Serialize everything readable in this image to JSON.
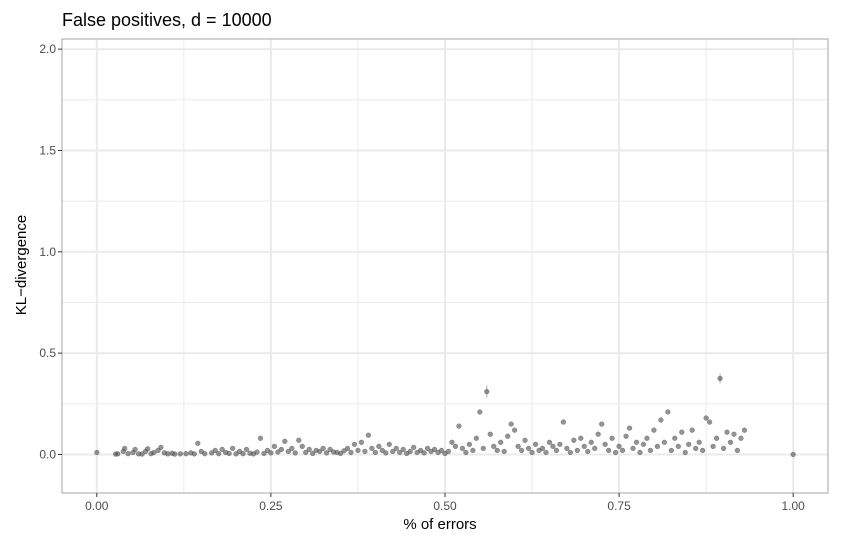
{
  "chart_data": {
    "type": "scatter",
    "title": "False positives,  d = 10000",
    "xlabel": "% of errors",
    "ylabel": "KL−divergence",
    "xlim": [
      -0.05,
      1.05
    ],
    "ylim": [
      -0.19,
      2.05
    ],
    "x_ticks": [
      0.0,
      0.25,
      0.5,
      0.75,
      1.0
    ],
    "x_tick_labels": [
      "0.00",
      "0.25",
      "0.50",
      "0.75",
      "1.00"
    ],
    "y_ticks": [
      0.0,
      0.5,
      1.0,
      1.5,
      2.0
    ],
    "y_tick_labels": [
      "0.0",
      "0.5",
      "1.0",
      "1.5",
      "2.0"
    ],
    "grid": true,
    "point_color": "#4d4d4d",
    "errorbar_color": "#bdbdbd",
    "points": [
      {
        "x": 0.0,
        "y": 0.01
      },
      {
        "x": 0.027,
        "y": 0.002
      },
      {
        "x": 0.03,
        "y": 0.003
      },
      {
        "x": 0.038,
        "y": 0.015
      },
      {
        "x": 0.04,
        "y": 0.03
      },
      {
        "x": 0.045,
        "y": 0.004
      },
      {
        "x": 0.052,
        "y": 0.01
      },
      {
        "x": 0.055,
        "y": 0.025
      },
      {
        "x": 0.06,
        "y": 0.003
      },
      {
        "x": 0.065,
        "y": 0.002
      },
      {
        "x": 0.07,
        "y": 0.015
      },
      {
        "x": 0.073,
        "y": 0.028
      },
      {
        "x": 0.078,
        "y": 0.004
      },
      {
        "x": 0.082,
        "y": 0.01
      },
      {
        "x": 0.088,
        "y": 0.02
      },
      {
        "x": 0.092,
        "y": 0.035
      },
      {
        "x": 0.097,
        "y": 0.008
      },
      {
        "x": 0.102,
        "y": 0.003
      },
      {
        "x": 0.108,
        "y": 0.006
      },
      {
        "x": 0.112,
        "y": 0.002
      },
      {
        "x": 0.12,
        "y": 0.003
      },
      {
        "x": 0.128,
        "y": 0.004
      },
      {
        "x": 0.135,
        "y": 0.008
      },
      {
        "x": 0.14,
        "y": 0.003
      },
      {
        "x": 0.145,
        "y": 0.055
      },
      {
        "x": 0.15,
        "y": 0.015
      },
      {
        "x": 0.155,
        "y": 0.004
      },
      {
        "x": 0.165,
        "y": 0.008
      },
      {
        "x": 0.17,
        "y": 0.02
      },
      {
        "x": 0.175,
        "y": 0.004
      },
      {
        "x": 0.18,
        "y": 0.025
      },
      {
        "x": 0.185,
        "y": 0.01
      },
      {
        "x": 0.19,
        "y": 0.005
      },
      {
        "x": 0.195,
        "y": 0.03
      },
      {
        "x": 0.2,
        "y": 0.003
      },
      {
        "x": 0.205,
        "y": 0.015
      },
      {
        "x": 0.21,
        "y": 0.004
      },
      {
        "x": 0.215,
        "y": 0.025
      },
      {
        "x": 0.22,
        "y": 0.006
      },
      {
        "x": 0.225,
        "y": 0.003
      },
      {
        "x": 0.23,
        "y": 0.012
      },
      {
        "x": 0.235,
        "y": 0.08
      },
      {
        "x": 0.24,
        "y": 0.005
      },
      {
        "x": 0.245,
        "y": 0.02
      },
      {
        "x": 0.25,
        "y": 0.008
      },
      {
        "x": 0.255,
        "y": 0.04
      },
      {
        "x": 0.26,
        "y": 0.012
      },
      {
        "x": 0.265,
        "y": 0.025
      },
      {
        "x": 0.27,
        "y": 0.065
      },
      {
        "x": 0.275,
        "y": 0.015
      },
      {
        "x": 0.28,
        "y": 0.03
      },
      {
        "x": 0.285,
        "y": 0.008
      },
      {
        "x": 0.29,
        "y": 0.07
      },
      {
        "x": 0.295,
        "y": 0.04
      },
      {
        "x": 0.3,
        "y": 0.01
      },
      {
        "x": 0.305,
        "y": 0.025
      },
      {
        "x": 0.31,
        "y": 0.005
      },
      {
        "x": 0.315,
        "y": 0.02
      },
      {
        "x": 0.32,
        "y": 0.015
      },
      {
        "x": 0.325,
        "y": 0.03
      },
      {
        "x": 0.33,
        "y": 0.008
      },
      {
        "x": 0.335,
        "y": 0.025
      },
      {
        "x": 0.34,
        "y": 0.012
      },
      {
        "x": 0.345,
        "y": 0.01
      },
      {
        "x": 0.35,
        "y": 0.005
      },
      {
        "x": 0.355,
        "y": 0.018
      },
      {
        "x": 0.36,
        "y": 0.03
      },
      {
        "x": 0.365,
        "y": 0.01
      },
      {
        "x": 0.37,
        "y": 0.05
      },
      {
        "x": 0.375,
        "y": 0.02
      },
      {
        "x": 0.38,
        "y": 0.06
      },
      {
        "x": 0.385,
        "y": 0.015
      },
      {
        "x": 0.39,
        "y": 0.095
      },
      {
        "x": 0.395,
        "y": 0.03
      },
      {
        "x": 0.4,
        "y": 0.01
      },
      {
        "x": 0.405,
        "y": 0.04
      },
      {
        "x": 0.41,
        "y": 0.02
      },
      {
        "x": 0.415,
        "y": 0.008
      },
      {
        "x": 0.42,
        "y": 0.05
      },
      {
        "x": 0.425,
        "y": 0.015
      },
      {
        "x": 0.43,
        "y": 0.03
      },
      {
        "x": 0.435,
        "y": 0.01
      },
      {
        "x": 0.44,
        "y": 0.025
      },
      {
        "x": 0.445,
        "y": 0.005
      },
      {
        "x": 0.45,
        "y": 0.015
      },
      {
        "x": 0.455,
        "y": 0.035
      },
      {
        "x": 0.46,
        "y": 0.01
      },
      {
        "x": 0.465,
        "y": 0.02
      },
      {
        "x": 0.47,
        "y": 0.008
      },
      {
        "x": 0.475,
        "y": 0.03
      },
      {
        "x": 0.48,
        "y": 0.015
      },
      {
        "x": 0.485,
        "y": 0.025
      },
      {
        "x": 0.49,
        "y": 0.01
      },
      {
        "x": 0.495,
        "y": 0.02
      },
      {
        "x": 0.5,
        "y": 0.005
      },
      {
        "x": 0.505,
        "y": 0.015
      },
      {
        "x": 0.51,
        "y": 0.06
      },
      {
        "x": 0.515,
        "y": 0.04
      },
      {
        "x": 0.52,
        "y": 0.14
      },
      {
        "x": 0.525,
        "y": 0.03
      },
      {
        "x": 0.53,
        "y": 0.01
      },
      {
        "x": 0.535,
        "y": 0.05
      },
      {
        "x": 0.54,
        "y": 0.02
      },
      {
        "x": 0.545,
        "y": 0.08
      },
      {
        "x": 0.55,
        "y": 0.21
      },
      {
        "x": 0.555,
        "y": 0.03
      },
      {
        "x": 0.56,
        "y": 0.31,
        "err": 0.03
      },
      {
        "x": 0.565,
        "y": 0.1
      },
      {
        "x": 0.57,
        "y": 0.04
      },
      {
        "x": 0.575,
        "y": 0.02
      },
      {
        "x": 0.58,
        "y": 0.06
      },
      {
        "x": 0.585,
        "y": 0.015
      },
      {
        "x": 0.59,
        "y": 0.09
      },
      {
        "x": 0.595,
        "y": 0.15
      },
      {
        "x": 0.6,
        "y": 0.12
      },
      {
        "x": 0.605,
        "y": 0.04
      },
      {
        "x": 0.61,
        "y": 0.02
      },
      {
        "x": 0.615,
        "y": 0.07
      },
      {
        "x": 0.62,
        "y": 0.03
      },
      {
        "x": 0.625,
        "y": 0.01
      },
      {
        "x": 0.63,
        "y": 0.05
      },
      {
        "x": 0.635,
        "y": 0.02
      },
      {
        "x": 0.64,
        "y": 0.03
      },
      {
        "x": 0.645,
        "y": 0.01
      },
      {
        "x": 0.65,
        "y": 0.06
      },
      {
        "x": 0.655,
        "y": 0.04
      },
      {
        "x": 0.66,
        "y": 0.02
      },
      {
        "x": 0.665,
        "y": 0.05
      },
      {
        "x": 0.67,
        "y": 0.16
      },
      {
        "x": 0.675,
        "y": 0.03
      },
      {
        "x": 0.68,
        "y": 0.01
      },
      {
        "x": 0.685,
        "y": 0.07
      },
      {
        "x": 0.69,
        "y": 0.02
      },
      {
        "x": 0.695,
        "y": 0.08
      },
      {
        "x": 0.7,
        "y": 0.04
      },
      {
        "x": 0.705,
        "y": 0.015
      },
      {
        "x": 0.71,
        "y": 0.06
      },
      {
        "x": 0.715,
        "y": 0.03
      },
      {
        "x": 0.72,
        "y": 0.1
      },
      {
        "x": 0.725,
        "y": 0.15
      },
      {
        "x": 0.73,
        "y": 0.05
      },
      {
        "x": 0.735,
        "y": 0.02
      },
      {
        "x": 0.74,
        "y": 0.08
      },
      {
        "x": 0.745,
        "y": 0.01
      },
      {
        "x": 0.75,
        "y": 0.04
      },
      {
        "x": 0.755,
        "y": 0.02
      },
      {
        "x": 0.76,
        "y": 0.09
      },
      {
        "x": 0.765,
        "y": 0.13
      },
      {
        "x": 0.77,
        "y": 0.03
      },
      {
        "x": 0.775,
        "y": 0.06
      },
      {
        "x": 0.78,
        "y": 0.01
      },
      {
        "x": 0.785,
        "y": 0.05
      },
      {
        "x": 0.79,
        "y": 0.08
      },
      {
        "x": 0.795,
        "y": 0.02
      },
      {
        "x": 0.8,
        "y": 0.12
      },
      {
        "x": 0.805,
        "y": 0.04
      },
      {
        "x": 0.81,
        "y": 0.17
      },
      {
        "x": 0.815,
        "y": 0.06
      },
      {
        "x": 0.82,
        "y": 0.21
      },
      {
        "x": 0.825,
        "y": 0.02
      },
      {
        "x": 0.83,
        "y": 0.08
      },
      {
        "x": 0.835,
        "y": 0.04
      },
      {
        "x": 0.84,
        "y": 0.11
      },
      {
        "x": 0.845,
        "y": 0.01
      },
      {
        "x": 0.85,
        "y": 0.05
      },
      {
        "x": 0.855,
        "y": 0.12
      },
      {
        "x": 0.86,
        "y": 0.03
      },
      {
        "x": 0.865,
        "y": 0.06
      },
      {
        "x": 0.87,
        "y": 0.02
      },
      {
        "x": 0.875,
        "y": 0.18
      },
      {
        "x": 0.88,
        "y": 0.16
      },
      {
        "x": 0.885,
        "y": 0.04
      },
      {
        "x": 0.89,
        "y": 0.08
      },
      {
        "x": 0.895,
        "y": 0.375,
        "err": 0.025
      },
      {
        "x": 0.9,
        "y": 0.03
      },
      {
        "x": 0.905,
        "y": 0.11
      },
      {
        "x": 0.91,
        "y": 0.06
      },
      {
        "x": 0.915,
        "y": 0.1
      },
      {
        "x": 0.92,
        "y": 0.02
      },
      {
        "x": 0.925,
        "y": 0.08
      },
      {
        "x": 0.93,
        "y": 0.12
      },
      {
        "x": 1.0,
        "y": 0.0
      }
    ]
  }
}
